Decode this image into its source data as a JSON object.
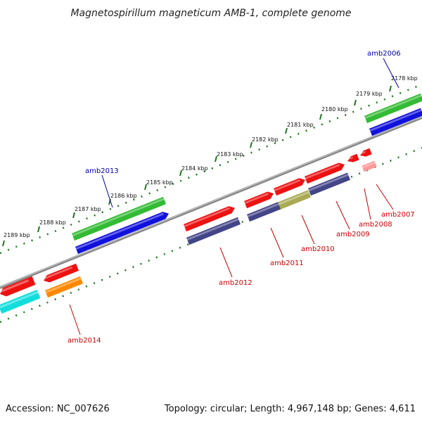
{
  "title": "Magnetospirillum magneticum AMB-1, complete genome",
  "accession": "Accession: NC_007626",
  "summary": "Topology: circular; Length: 4,967,148 bp; Genes: 4,611",
  "scale_labels": [
    "2178 kbp",
    "2179 kbp",
    "2180 kbp",
    "2181 kbp",
    "2182 kbp",
    "2183 kbp",
    "2184 kbp",
    "2185 kbp",
    "2186 kbp",
    "2187 kbp",
    "2188 kbp",
    "2189 kbp"
  ],
  "gene_labels": [
    {
      "name": "amb2006",
      "color": "#0000aa"
    },
    {
      "name": "amb2007",
      "color": "#cc0000"
    },
    {
      "name": "amb2008",
      "color": "#cc0000"
    },
    {
      "name": "amb2009",
      "color": "#cc0000"
    },
    {
      "name": "amb2010",
      "color": "#cc0000"
    },
    {
      "name": "amb2011",
      "color": "#cc0000"
    },
    {
      "name": "amb2012",
      "color": "#cc0000"
    },
    {
      "name": "amb2013",
      "color": "#0000aa"
    },
    {
      "name": "amb2014",
      "color": "#cc0000"
    }
  ],
  "colors": {
    "cds_forward": "#ee1111",
    "gene_green": "#33bb33",
    "gene_blue": "#1111dd",
    "gene_purple": "#444488",
    "gene_olive": "#aaaa55",
    "gene_orange": "#ff8800",
    "gene_cyan": "#11dddd",
    "gene_pink": "#ff9999",
    "backbone": "#888888",
    "ticks": "#227722"
  }
}
